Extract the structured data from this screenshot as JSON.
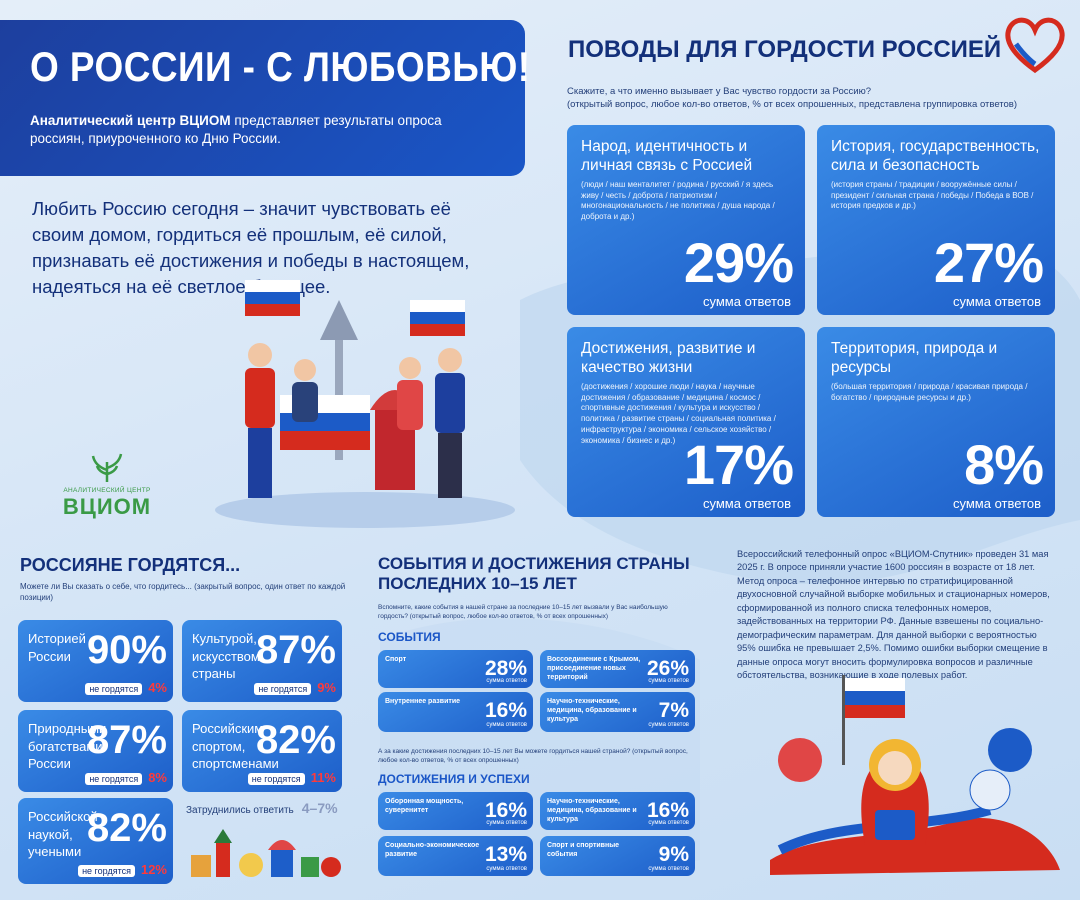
{
  "header": {
    "title": "О РОССИИ - С ЛЮБОВЬЮ!",
    "lead_bold": "Аналитический центр ВЦИОМ",
    "lead": "представляет результаты опроса россиян, приуроченного ко Дню России."
  },
  "intro": "Любить Россию сегодня – значит чувствовать её своим домом, гордиться её прошлым, её силой, признавать её достижения и победы в настоящем, надеяться на её светлое будущее.",
  "logo": {
    "caption": "АНАЛИТИЧЕСКИЙ ЦЕНТР",
    "name": "ВЦИОМ"
  },
  "pride": {
    "title": "ПОВОДЫ ДЛЯ ГОРДОСТИ РОССИЕЙ",
    "question": "Скажите, а что именно вызывает у Вас чувство гордости за Россию?",
    "note": "(открытый вопрос, любое кол-во ответов, % от всех опрошенных, представлена группировка ответов)",
    "cards": [
      {
        "title": "Народ, идентичность и личная связь с Россией",
        "details": "(люди / наш менталитет / родина / русский / я здесь живу / честь / доброта / патриотизм / многонациональность / не политика / душа народа / доброта и др.)",
        "value": "29%",
        "caption": "сумма ответов"
      },
      {
        "title": "История, государственность, сила и безопасность",
        "details": "(история страны / традиции / вооружённые силы / президент / сильная страна / победы / Победа в ВОВ / история предков и др.)",
        "value": "27%",
        "caption": "сумма ответов"
      },
      {
        "title": "Достижения, развитие и качество жизни",
        "details": "(достижения / хорошие люди / наука / научные достижения / образование / медицина / космос / спортивные достижения / культура и искусство / политика / развитие страны / социальная политика / инфраструктура / экономика / сельское хозяйство / экономика / бизнес и др.)",
        "value": "17%",
        "caption": "сумма ответов"
      },
      {
        "title": "Территория, природа и ресурсы",
        "details": "(большая территория / природа / красивая природа / богатство / природные ресурсы и др.)",
        "value": "8%",
        "caption": "сумма ответов"
      }
    ]
  },
  "proud": {
    "title": "РОССИЯНЕ ГОРДЯТСЯ...",
    "note": "Можете ли Вы сказать о себе, что гордитесь... (закрытый вопрос, один ответ по каждой позиции)",
    "cards": [
      {
        "label": "Историей России",
        "value": "90%",
        "not_label": "не гордятся",
        "not_value": "4%"
      },
      {
        "label": "Культурой, искусством страны",
        "value": "87%",
        "not_label": "не гордятся",
        "not_value": "9%"
      },
      {
        "label": "Природными богатствами России",
        "value": "87%",
        "not_label": "не гордятся",
        "not_value": "8%"
      },
      {
        "label": "Российским спортом, спортсменами",
        "value": "82%",
        "not_label": "не гордятся",
        "not_value": "11%"
      },
      {
        "label": "Российской наукой, учеными",
        "value": "82%",
        "not_label": "не гордятся",
        "not_value": "12%"
      }
    ],
    "undecided_label": "Затруднились ответить",
    "undecided_value": "4–7%"
  },
  "events": {
    "title": "СОБЫТИЯ И ДОСТИЖЕНИЯ СТРАНЫ ПОСЛЕДНИХ 10–15 ЛЕТ",
    "note": "Вспомните, какие события в нашей стране за последние 10–15 лет вызвали у Вас наибольшую гордость? (открытый вопрос, любое кол-во ответов, % от всех опрошенных)",
    "events_title": "СОБЫТИЯ",
    "achievements_note": "А за какие достижения последних 10–15 лет Вы можете гордиться нашей страной? (открытый вопрос, любое кол-во ответов, % от всех опрошенных)",
    "achievements_title": "ДОСТИЖЕНИЯ И УСПЕХИ",
    "cards": [
      {
        "title": "Спорт",
        "value": "28%",
        "caption": "сумма ответов"
      },
      {
        "title": "Воссоединение с Крымом, присоединение новых территорий",
        "value": "26%",
        "caption": "сумма ответов"
      },
      {
        "title": "Внутреннее развитие",
        "value": "16%",
        "caption": "сумма ответов"
      },
      {
        "title": "Научно-технические, медицина, образование и культура",
        "value": "7%",
        "caption": "сумма ответов"
      },
      {
        "title": "Оборонная мощность, суверенитет",
        "value": "16%",
        "caption": "сумма ответов"
      },
      {
        "title": "Научно-технические, медицина, образование и культура",
        "value": "16%",
        "caption": "сумма ответов"
      },
      {
        "title": "Социально-экономическое развитие",
        "value": "13%",
        "caption": "сумма ответов"
      },
      {
        "title": "Спорт и спортивные события",
        "value": "9%",
        "caption": "сумма ответов"
      }
    ]
  },
  "method": "Всероссийский телефонный опрос «ВЦИОМ-Спутник» проведен 31 мая 2025 г. В опросе приняли участие 1600 россиян в возрасте от 18 лет. Метод опроса – телефонное интервью по стратифицированной двухосновной случайной выборке мобильных и стационарных номеров, сформированной из полного списка телефонных номеров, задействованных на территории РФ. Данные взвешены по социально-демографическим параметрам. Для данной выборки с вероятностью 95% ошибка не превышает 2,5%. Помимо ошибки выборки смещение в данные опроса могут вносить формулировка вопросов и различные обстоятельства, возникающие в ходе полевых работ."
}
